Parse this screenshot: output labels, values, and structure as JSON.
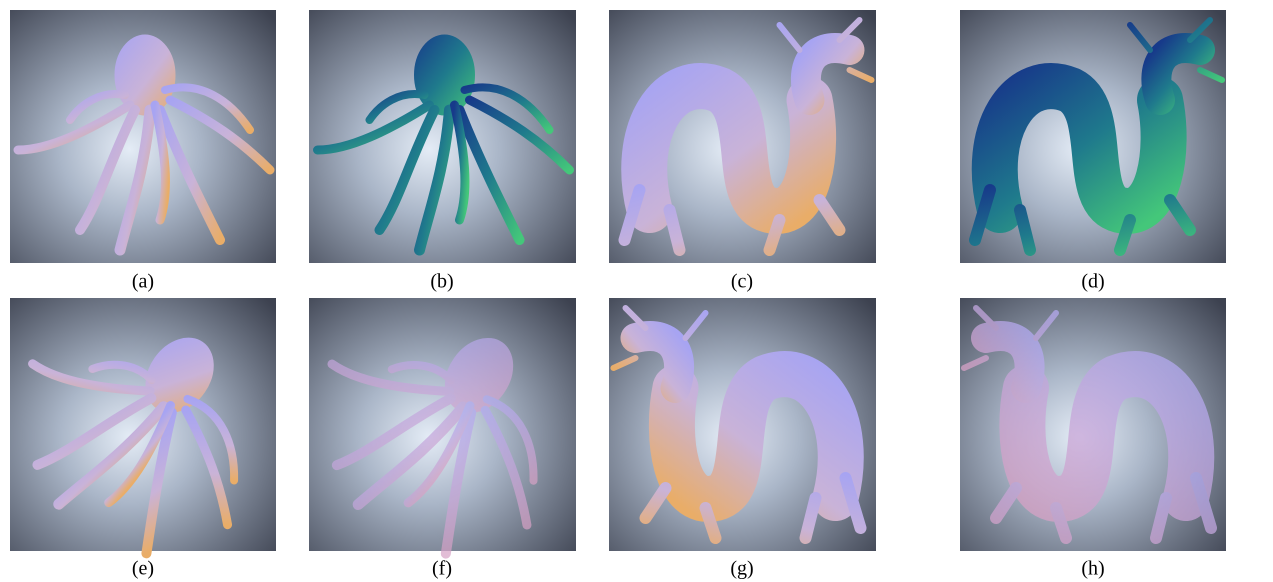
{
  "figure": {
    "captions": [
      "(a)",
      "(b)",
      "(c)",
      "(d)",
      "(e)",
      "(f)",
      "(g)",
      "(h)"
    ]
  }
}
